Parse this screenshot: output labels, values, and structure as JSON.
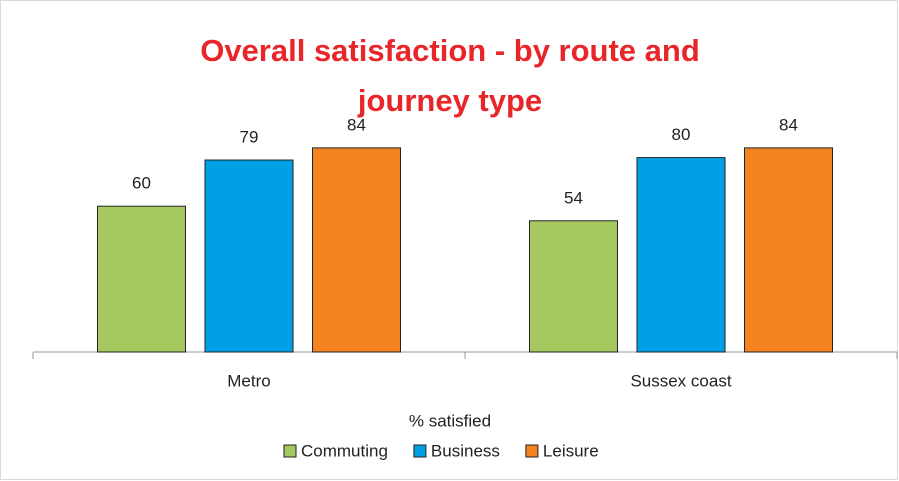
{
  "chart_data": {
    "type": "bar",
    "title": "Overall satisfaction - by route and journey type",
    "x_label": "% satisfied",
    "categories": [
      "Metro",
      "Sussex coast"
    ],
    "series": [
      {
        "name": "Commuting",
        "color": "#a5c85f",
        "values": [
          60,
          54
        ]
      },
      {
        "name": "Business",
        "color": "#00a0e6",
        "values": [
          79,
          80
        ]
      },
      {
        "name": "Leisure",
        "color": "#f58220",
        "values": [
          84,
          84
        ]
      }
    ],
    "ylim": [
      0,
      100
    ],
    "legend": "bottom"
  }
}
